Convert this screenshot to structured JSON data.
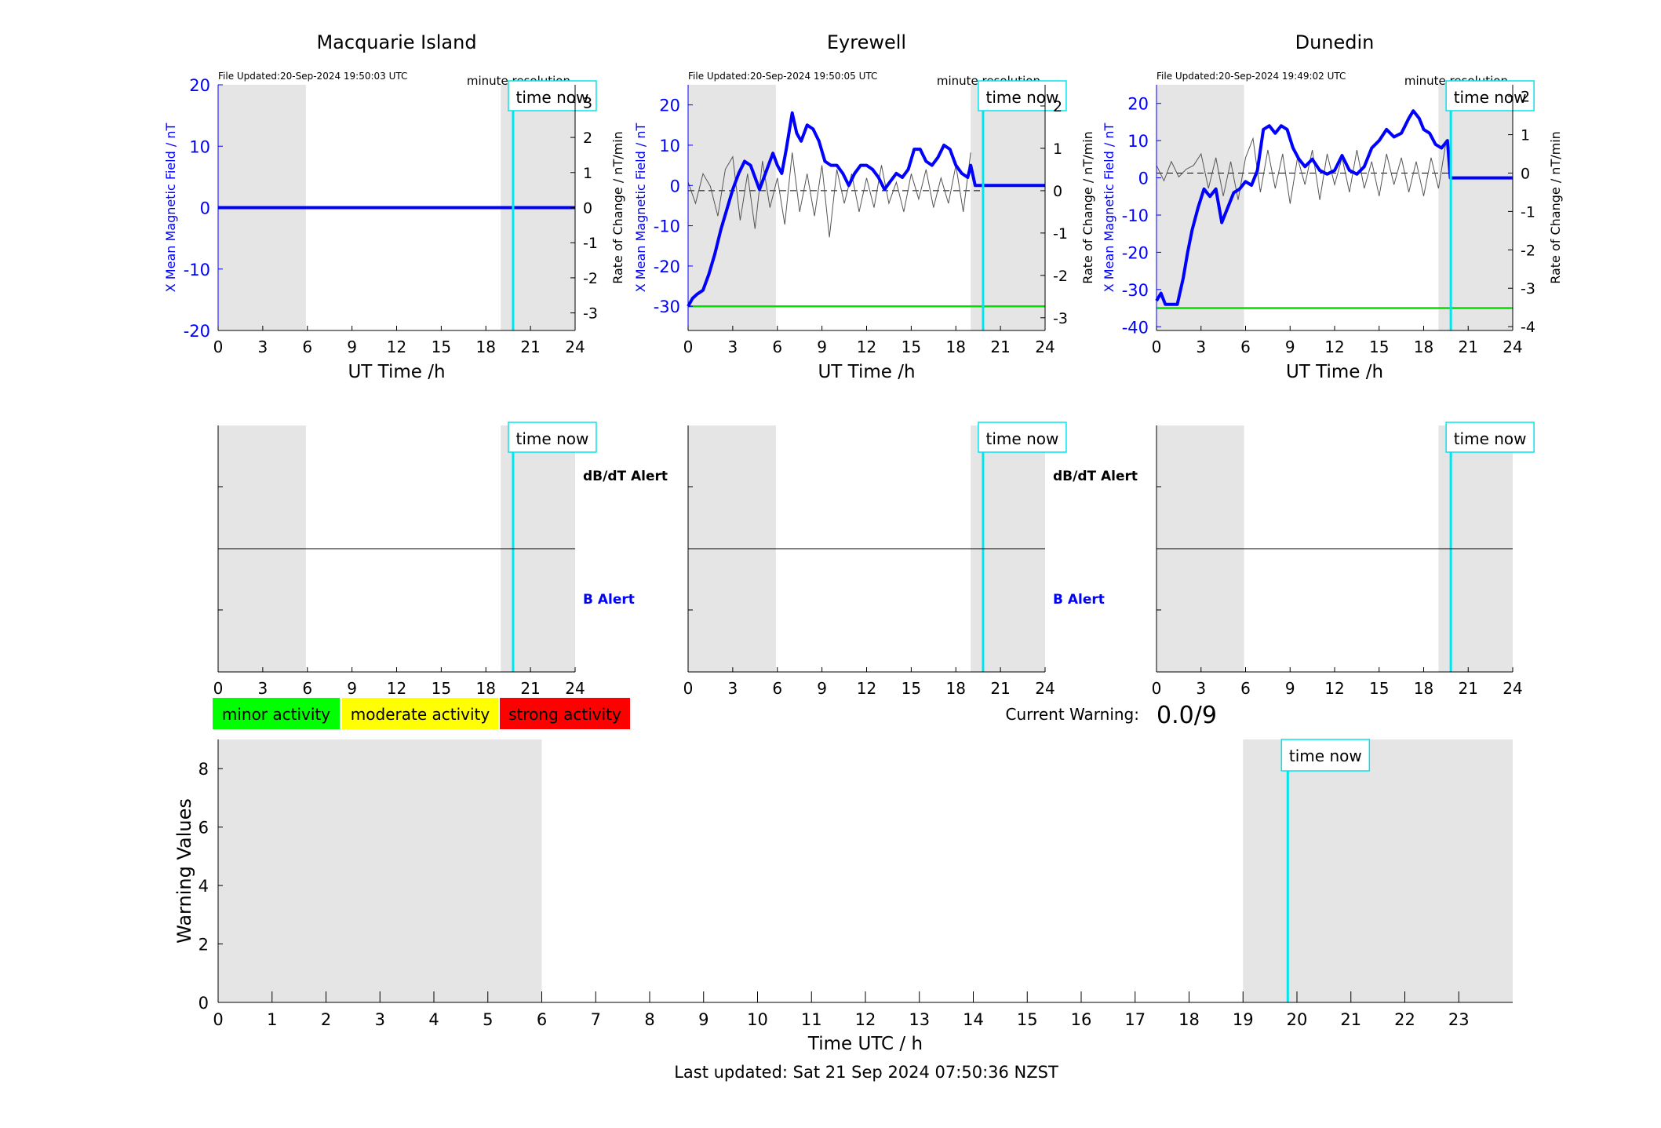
{
  "time_now_label": "time now",
  "footer": {
    "last_updated": "Last updated: Sat 21 Sep 2024 07:50:36 NZST"
  },
  "current_warning": {
    "label": "Current Warning:",
    "value": "0.0/9"
  },
  "activity_legend": [
    {
      "label": "minor activity",
      "color": "#00ff00"
    },
    {
      "label": "moderate activity",
      "color": "#ffff00"
    },
    {
      "label": "strong activity",
      "color": "#ff0000"
    }
  ],
  "colors": {
    "field": "#0000ff",
    "rate": "#555555",
    "time_now": "#00e5ee",
    "night": "#e5e5e5",
    "threshold": "#00e000"
  },
  "chart_data": [
    {
      "type": "line",
      "title": "Macquarie Island",
      "file_updated": "File Updated:20-Sep-2024 19:50:03 UTC",
      "resolution": "minute resolution",
      "xlabel": "UT Time /h",
      "ylabel": "X Mean Magnetic Field / nT",
      "ylabel_right": "Rate of Change / nT/min",
      "xlim": [
        0,
        24
      ],
      "xticks": [
        0,
        3,
        6,
        9,
        12,
        15,
        18,
        21,
        24
      ],
      "ylim": [
        -20,
        20
      ],
      "yticks": [
        -20,
        -10,
        0,
        10,
        20
      ],
      "ylim_right": [
        -3.5,
        3.5
      ],
      "yticks_right": [
        -3,
        -2,
        -1,
        0,
        1,
        2,
        3
      ],
      "shaded": [
        [
          0,
          5.9
        ],
        [
          19,
          24
        ]
      ],
      "time_now": 19.83,
      "threshold": null,
      "field_series": {
        "x": [
          0,
          24
        ],
        "y": [
          0,
          0
        ]
      },
      "rate_series": null
    },
    {
      "type": "line",
      "title": "Eyrewell",
      "file_updated": "File Updated:20-Sep-2024 19:50:05 UTC",
      "resolution": "minute resolution",
      "xlabel": "UT Time /h",
      "ylabel": "X Mean Magnetic Field / nT",
      "ylabel_right": "Rate of Change / nT/min",
      "xlim": [
        0,
        24
      ],
      "xticks": [
        0,
        3,
        6,
        9,
        12,
        15,
        18,
        21,
        24
      ],
      "ylim": [
        -36,
        25
      ],
      "yticks": [
        -30,
        -20,
        -10,
        0,
        10,
        20
      ],
      "ylim_right": [
        -3.3,
        2.5
      ],
      "yticks_right": [
        -3,
        -2,
        -1,
        0,
        1,
        2
      ],
      "shaded": [
        [
          0,
          5.9
        ],
        [
          19,
          24
        ]
      ],
      "time_now": 19.83,
      "threshold": -30,
      "field_series": {
        "x": [
          0,
          0.3,
          0.6,
          1,
          1.4,
          1.8,
          2.2,
          2.6,
          3,
          3.4,
          3.8,
          4.2,
          4.5,
          4.8,
          5.1,
          5.4,
          5.7,
          6,
          6.3,
          6.6,
          7,
          7.3,
          7.6,
          8,
          8.4,
          8.8,
          9.2,
          9.6,
          10,
          10.4,
          10.8,
          11.2,
          11.6,
          12,
          12.4,
          12.8,
          13.2,
          13.6,
          14,
          14.4,
          14.8,
          15.2,
          15.6,
          16,
          16.4,
          16.8,
          17.2,
          17.6,
          18,
          18.4,
          18.8,
          19,
          19.3,
          24
        ],
        "y": [
          -30,
          -28,
          -27,
          -26,
          -22,
          -17,
          -11,
          -6,
          -1,
          3,
          6,
          5,
          2,
          -1,
          2,
          5,
          8,
          5,
          3,
          9,
          18,
          13,
          11,
          15,
          14,
          11,
          6,
          5,
          5,
          3,
          0,
          3,
          5,
          5,
          4,
          2,
          -1,
          1,
          3,
          2,
          4,
          9,
          9,
          6,
          5,
          7,
          10,
          9,
          5,
          3,
          2,
          5,
          0,
          0
        ]
      },
      "rate_series": {
        "x": [
          0,
          0.5,
          1,
          1.5,
          2,
          2.5,
          3,
          3.5,
          4,
          4.5,
          5,
          5.5,
          6,
          6.5,
          7,
          7.5,
          8,
          8.5,
          9,
          9.5,
          10,
          10.5,
          11,
          11.5,
          12,
          12.5,
          13,
          13.5,
          14,
          14.5,
          15,
          15.5,
          16,
          16.5,
          17,
          17.5,
          18,
          18.5,
          19
        ],
        "y": [
          0.2,
          -0.3,
          0.4,
          0.1,
          -0.6,
          0.5,
          0.8,
          -0.7,
          0.4,
          -0.9,
          0.7,
          -0.4,
          0.3,
          -0.8,
          0.9,
          -0.5,
          0.4,
          -0.6,
          0.6,
          -1.1,
          0.5,
          -0.3,
          0.4,
          -0.5,
          0.3,
          -0.4,
          0.6,
          -0.3,
          0.2,
          -0.5,
          0.4,
          -0.2,
          0.5,
          -0.4,
          0.3,
          -0.3,
          0.6,
          -0.5,
          0.9
        ]
      }
    },
    {
      "type": "line",
      "title": "Dunedin",
      "file_updated": "File Updated:20-Sep-2024 19:49:02 UTC",
      "resolution": "minute resolution",
      "xlabel": "UT Time /h",
      "ylabel": "X Mean Magnetic Field / nT",
      "ylabel_right": "Rate of Change / nT/min",
      "xlim": [
        0,
        24
      ],
      "xticks": [
        0,
        3,
        6,
        9,
        12,
        15,
        18,
        21,
        24
      ],
      "ylim": [
        -41,
        25
      ],
      "yticks": [
        -40,
        -30,
        -20,
        -10,
        0,
        10,
        20
      ],
      "ylim_right": [
        -4.1,
        2.3
      ],
      "yticks_right": [
        -4,
        -3,
        -2,
        -1,
        0,
        1,
        2
      ],
      "shaded": [
        [
          0,
          5.9
        ],
        [
          19,
          24
        ]
      ],
      "time_now": 19.83,
      "threshold": -35,
      "field_series": {
        "x": [
          0,
          0.3,
          0.6,
          1,
          1.4,
          1.8,
          2.1,
          2.4,
          2.8,
          3.2,
          3.6,
          4,
          4.4,
          4.8,
          5.2,
          5.6,
          6,
          6.4,
          6.8,
          7.2,
          7.6,
          8,
          8.4,
          8.8,
          9.2,
          9.6,
          10,
          10.5,
          11,
          11.5,
          12,
          12.5,
          13,
          13.5,
          14,
          14.5,
          15,
          15.5,
          16,
          16.5,
          17,
          17.3,
          17.7,
          18,
          18.4,
          18.8,
          19.2,
          19.6,
          19.8,
          24
        ],
        "y": [
          -33,
          -31,
          -34,
          -34,
          -34,
          -27,
          -20,
          -14,
          -8,
          -3,
          -5,
          -3,
          -12,
          -8,
          -4,
          -3,
          -1,
          -2,
          2,
          13,
          14,
          12,
          14,
          13,
          8,
          5,
          3,
          5,
          2,
          1,
          2,
          6,
          2,
          1,
          3,
          8,
          10,
          13,
          11,
          12,
          16,
          18,
          16,
          13,
          12,
          9,
          8,
          10,
          0,
          0
        ]
      },
      "rate_series": {
        "x": [
          0,
          0.5,
          1,
          1.5,
          2,
          2.5,
          3,
          3.5,
          4,
          4.5,
          5,
          5.5,
          6,
          6.5,
          7,
          7.5,
          8,
          8.5,
          9,
          9.5,
          10,
          10.5,
          11,
          11.5,
          12,
          12.5,
          13,
          13.5,
          14,
          14.5,
          15,
          15.5,
          16,
          16.5,
          17,
          17.5,
          18,
          18.5,
          19,
          19.5
        ],
        "y": [
          0.2,
          -0.2,
          0.3,
          -0.1,
          0.1,
          0.2,
          0.5,
          -0.4,
          0.4,
          -0.6,
          0.3,
          -0.7,
          0.4,
          0.9,
          -0.5,
          0.6,
          -0.4,
          0.5,
          -0.8,
          0.4,
          -0.3,
          0.6,
          -0.7,
          0.5,
          -0.3,
          0.4,
          -0.5,
          0.6,
          -0.4,
          0.3,
          -0.6,
          0.5,
          -0.3,
          0.4,
          -0.5,
          0.3,
          -0.6,
          0.4,
          -0.4,
          0.8
        ]
      }
    },
    {
      "type": "alert",
      "station": "Macquarie Island",
      "xlim": [
        0,
        24
      ],
      "xticks": [
        0,
        3,
        6,
        9,
        12,
        15,
        18,
        21,
        24
      ],
      "shaded": [
        [
          0,
          5.9
        ],
        [
          19,
          24
        ]
      ],
      "time_now": 19.83,
      "upper_label": "dB/dT Alert",
      "lower_label": "B Alert"
    },
    {
      "type": "alert",
      "station": "Eyrewell",
      "xlim": [
        0,
        24
      ],
      "xticks": [
        0,
        3,
        6,
        9,
        12,
        15,
        18,
        21,
        24
      ],
      "shaded": [
        [
          0,
          5.9
        ],
        [
          19,
          24
        ]
      ],
      "time_now": 19.83,
      "upper_label": "dB/dT Alert",
      "lower_label": "B Alert"
    },
    {
      "type": "alert",
      "station": "Dunedin",
      "xlim": [
        0,
        24
      ],
      "xticks": [
        0,
        3,
        6,
        9,
        12,
        15,
        18,
        21,
        24
      ],
      "shaded": [
        [
          0,
          5.9
        ],
        [
          19,
          24
        ]
      ],
      "time_now": 19.83,
      "upper_label": "",
      "lower_label": ""
    },
    {
      "type": "bar",
      "title": "",
      "xlabel": "Time UTC / h",
      "ylabel": "Warning Values",
      "xlim": [
        0,
        24
      ],
      "xticks": [
        0,
        1,
        2,
        3,
        4,
        5,
        6,
        7,
        8,
        9,
        10,
        11,
        12,
        13,
        14,
        15,
        16,
        17,
        18,
        19,
        20,
        21,
        22,
        23
      ],
      "ylim": [
        0,
        9
      ],
      "yticks": [
        0,
        2,
        4,
        6,
        8
      ],
      "shaded": [
        [
          0,
          6
        ],
        [
          19,
          24
        ]
      ],
      "time_now": 19.83,
      "values": []
    }
  ]
}
